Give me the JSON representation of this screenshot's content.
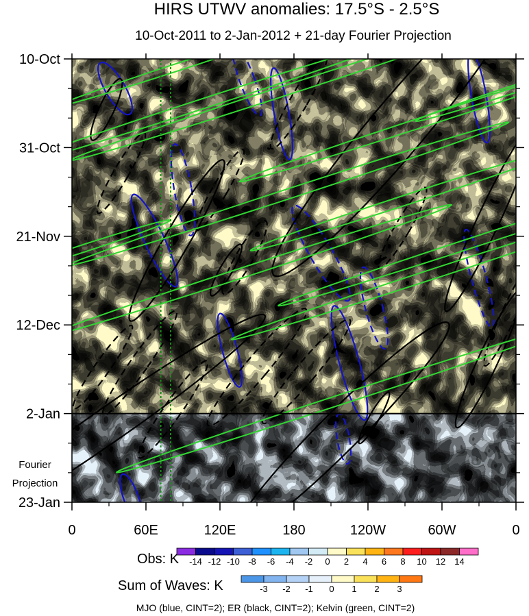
{
  "chart_data": {
    "type": "heatmap",
    "title": "HIRS UTWV anomalies: 17.5°S - 2.5°S",
    "subtitle": "10-Oct-2011 to 2-Jan-2012 + 21-day Fourier Projection",
    "x_ticks": [
      "0",
      "60E",
      "120E",
      "180",
      "120W",
      "60W",
      "0"
    ],
    "x_tick_lon": [
      0,
      60,
      120,
      180,
      240,
      300,
      360
    ],
    "xlim": [
      0,
      360
    ],
    "y_ticks": [
      "10-Oct",
      "31-Oct",
      "21-Nov",
      "12-Dec",
      "2-Jan",
      "23-Jan"
    ],
    "y_tick_days": [
      0,
      21,
      42,
      63,
      84,
      105
    ],
    "ylim": [
      0,
      105
    ],
    "observation_end_day": 84,
    "projection_label": [
      "Fourier",
      "Projection"
    ],
    "reference_lines_lon": [
      72,
      80
    ],
    "obs_colorbar": {
      "label": "Obs: K",
      "levels": [
        "-14",
        "-12",
        "-10",
        "-8",
        "-6",
        "-4",
        "-2",
        "0",
        "2",
        "4",
        "6",
        "8",
        "10",
        "12",
        "14"
      ],
      "colors": [
        "#8a2be2",
        "#0a0a8c",
        "#1414b4",
        "#3c5fd6",
        "#1e90ff",
        "#1cb4f0",
        "#a0c8f0",
        "#d2ebf5",
        "#fffac8",
        "#fae15a",
        "#ffb414",
        "#ff781e",
        "#ff1e1e",
        "#be1414",
        "#8c2828",
        "#ff6ec8"
      ]
    },
    "waves_colorbar": {
      "label": "Sum of Waves: K",
      "levels": [
        "-3",
        "-2",
        "-1",
        "0",
        "1",
        "2",
        "3"
      ],
      "colors": [
        "#4b96e6",
        "#82b4f0",
        "#b4d2f5",
        "#e6f0fa",
        "#fffac8",
        "#fae15a",
        "#ffb414",
        "#ff7814"
      ]
    },
    "legend_note": "MJO (blue, CINT=2); ER (black, CINT=2); Kelvin (green, CINT=2)",
    "series": [
      {
        "name": "MJO",
        "color": "#1414c8",
        "contours": [
          {
            "lon": 35,
            "day": 7,
            "rx": 8,
            "ry": 7,
            "tilt": -30,
            "sign": 1
          },
          {
            "lon": 90,
            "day": 31,
            "rx": 7,
            "ry": 11,
            "tilt": -10,
            "sign": -1
          },
          {
            "lon": 67,
            "day": 43,
            "rx": 8,
            "ry": 12,
            "tilt": -25,
            "sign": 1
          },
          {
            "lon": 142,
            "day": 5,
            "rx": 6,
            "ry": 9,
            "tilt": -20,
            "sign": -1
          },
          {
            "lon": 170,
            "day": 13,
            "rx": 6,
            "ry": 11,
            "tilt": -10,
            "sign": 1
          },
          {
            "lon": 202,
            "day": 46,
            "rx": 9,
            "ry": 13,
            "tilt": -30,
            "sign": -1
          },
          {
            "lon": 225,
            "day": 72,
            "rx": 8,
            "ry": 14,
            "tilt": -15,
            "sign": 1
          },
          {
            "lon": 330,
            "day": 9,
            "rx": 6,
            "ry": 11,
            "tilt": -10,
            "sign": 1
          },
          {
            "lon": 330,
            "day": 52,
            "rx": 6,
            "ry": 12,
            "tilt": -15,
            "sign": -1
          },
          {
            "lon": 245,
            "day": 59,
            "rx": 7,
            "ry": 10,
            "tilt": -15,
            "sign": -1
          },
          {
            "lon": 220,
            "day": 90,
            "rx": 5,
            "ry": 6,
            "tilt": -10,
            "sign": -1
          },
          {
            "lon": 128,
            "day": 69,
            "rx": 6,
            "ry": 9,
            "tilt": -15,
            "sign": 1
          },
          {
            "lon": 48,
            "day": 104,
            "rx": 6,
            "ry": 6,
            "tilt": -20,
            "sign": 1
          }
        ]
      },
      {
        "name": "ER",
        "color": "#000000",
        "contours": [
          {
            "lon": 265,
            "day": 16,
            "rx": 22,
            "ry": 46,
            "tilt": 40,
            "sign": 1
          },
          {
            "lon": 33,
            "day": 86,
            "rx": 14,
            "ry": 44,
            "tilt": 55,
            "sign": 1
          },
          {
            "lon": 218,
            "day": 88,
            "rx": 16,
            "ry": 36,
            "tilt": 45,
            "sign": 1
          },
          {
            "lon": 338,
            "day": 38,
            "rx": 9,
            "ry": 24,
            "tilt": 25,
            "sign": 1
          },
          {
            "lon": 338,
            "day": 71,
            "rx": 8,
            "ry": 18,
            "tilt": 25,
            "sign": 1
          },
          {
            "lon": 85,
            "day": 43,
            "rx": 10,
            "ry": 22,
            "tilt": 30,
            "sign": 1
          },
          {
            "lon": 28,
            "day": 12,
            "rx": 6,
            "ry": 8,
            "tilt": 25,
            "sign": 1
          },
          {
            "lon": 184,
            "day": 10,
            "rx": 7,
            "ry": 13,
            "tilt": 30,
            "sign": -1
          },
          {
            "lon": 120,
            "day": 31,
            "rx": 6,
            "ry": 11,
            "tilt": 30,
            "sign": -1
          },
          {
            "lon": 140,
            "day": 47,
            "rx": 7,
            "ry": 10,
            "tilt": 30,
            "sign": -1
          },
          {
            "lon": 150,
            "day": 73,
            "rx": 9,
            "ry": 18,
            "tilt": 40,
            "sign": -1
          },
          {
            "lon": 190,
            "day": 74,
            "rx": 8,
            "ry": 16,
            "tilt": 40,
            "sign": -1
          },
          {
            "lon": 268,
            "day": 40,
            "rx": 6,
            "ry": 11,
            "tilt": 30,
            "sign": -1
          },
          {
            "lon": 55,
            "day": 72,
            "rx": 7,
            "ry": 15,
            "tilt": 35,
            "sign": -1
          },
          {
            "lon": 82,
            "day": 83,
            "rx": 7,
            "ry": 14,
            "tilt": 35,
            "sign": -1
          },
          {
            "lon": 25,
            "day": 73,
            "rx": 6,
            "ry": 12,
            "tilt": 35,
            "sign": -1
          },
          {
            "lon": 40,
            "day": 27,
            "rx": 6,
            "ry": 11,
            "tilt": 30,
            "sign": -1
          },
          {
            "lon": 355,
            "day": 60,
            "rx": 6,
            "ry": 14,
            "tilt": 25,
            "sign": -1
          },
          {
            "lon": 125,
            "day": 50,
            "rx": 5,
            "ry": 7,
            "tilt": 30,
            "sign": 1
          },
          {
            "lon": 245,
            "day": 85,
            "rx": 4,
            "ry": 7,
            "tilt": 30,
            "sign": 1
          }
        ]
      },
      {
        "name": "Kelvin",
        "color": "#32d732",
        "contours": [
          {
            "lon": 102,
            "day": 11,
            "rx": 4,
            "ry": 48,
            "tilt": 72,
            "sign": 1
          },
          {
            "lon": 178,
            "day": 7,
            "rx": 4,
            "ry": 55,
            "tilt": 72,
            "sign": 1
          },
          {
            "lon": 305,
            "day": 13,
            "rx": 4,
            "ry": 52,
            "tilt": 72,
            "sign": 1
          },
          {
            "lon": 175,
            "day": 32,
            "rx": 4,
            "ry": 55,
            "tilt": 72,
            "sign": 1
          },
          {
            "lon": 275,
            "day": 33,
            "rx": 4,
            "ry": 40,
            "tilt": 72,
            "sign": 1
          },
          {
            "lon": 330,
            "day": 43,
            "rx": 4,
            "ry": 50,
            "tilt": 72,
            "sign": 1
          },
          {
            "lon": 145,
            "day": 50,
            "rx": 4,
            "ry": 50,
            "tilt": 72,
            "sign": 1
          },
          {
            "lon": 292,
            "day": 51,
            "rx": 4,
            "ry": 50,
            "tilt": 72,
            "sign": 1
          },
          {
            "lon": 225,
            "day": 80,
            "rx": 4,
            "ry": 58,
            "tilt": 72,
            "sign": 1
          },
          {
            "lon": 85,
            "day": 2,
            "rx": 3,
            "ry": 30,
            "tilt": 72,
            "sign": 1
          },
          {
            "lon": 360,
            "day": 7,
            "rx": 3,
            "ry": 25,
            "tilt": 72,
            "sign": 1
          },
          {
            "lon": 8,
            "day": 45,
            "rx": 3,
            "ry": 22,
            "tilt": 72,
            "sign": 1
          }
        ]
      }
    ]
  }
}
